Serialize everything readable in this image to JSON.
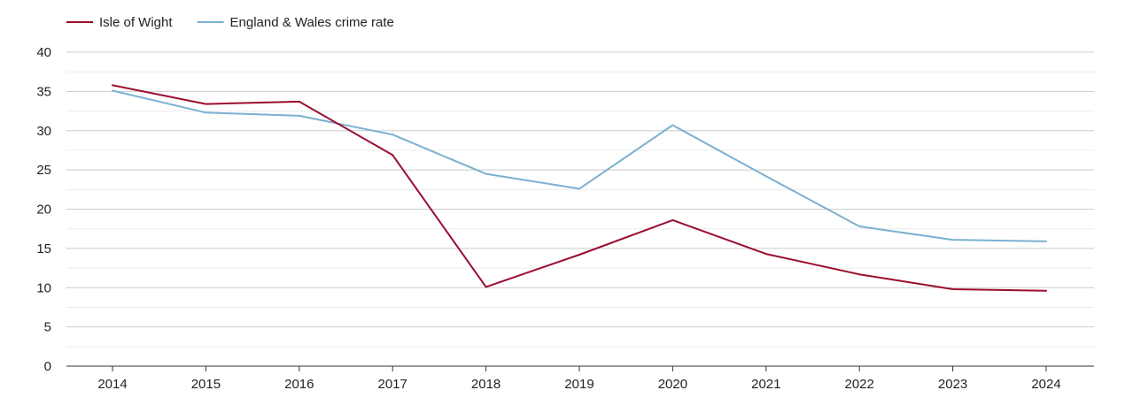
{
  "chart_data": {
    "type": "line",
    "title": "",
    "xlabel": "",
    "ylabel": "",
    "x": [
      "2014",
      "2015",
      "2016",
      "2017",
      "2018",
      "2019",
      "2020",
      "2021",
      "2022",
      "2023",
      "2024"
    ],
    "ylim": [
      0,
      40
    ],
    "yticks": [
      0,
      5,
      10,
      15,
      20,
      25,
      30,
      35,
      40
    ],
    "grid": true,
    "legend_position": "top-left",
    "series": [
      {
        "name": "Isle of Wight",
        "color": "#9b0d2e",
        "values": [
          35.8,
          33.4,
          33.7,
          26.9,
          10.1,
          14.2,
          18.6,
          14.3,
          11.7,
          9.8,
          9.6
        ]
      },
      {
        "name": "England & Wales crime rate",
        "color": "#7bb0d1",
        "values": [
          35.1,
          32.3,
          31.9,
          29.5,
          24.5,
          22.6,
          30.7,
          24.2,
          17.8,
          16.1,
          15.9
        ]
      }
    ]
  }
}
